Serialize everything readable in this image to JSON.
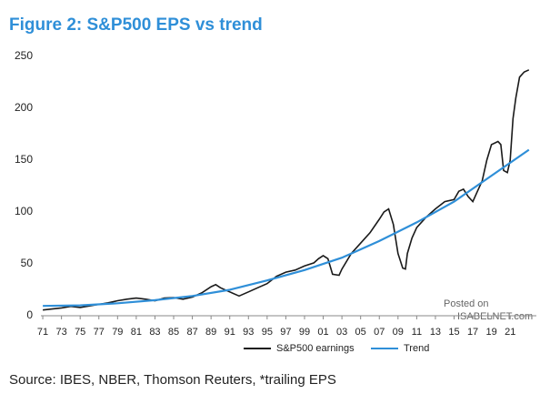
{
  "chart_data": {
    "type": "line",
    "title": "Figure 2: S&P500 EPS vs trend",
    "source": "Source: IBES, NBER, Thomson Reuters, *trailing EPS",
    "watermark": [
      "Posted on",
      "ISABELNET.com"
    ],
    "xlim": [
      1970.8,
      2023.8
    ],
    "ylim": [
      0,
      250
    ],
    "yticks": [
      0,
      50,
      100,
      150,
      200,
      250
    ],
    "xticks": [
      {
        "value": 1971,
        "label": "71"
      },
      {
        "value": 1973,
        "label": "73"
      },
      {
        "value": 1975,
        "label": "75"
      },
      {
        "value": 1977,
        "label": "77"
      },
      {
        "value": 1979,
        "label": "79"
      },
      {
        "value": 1981,
        "label": "81"
      },
      {
        "value": 1983,
        "label": "83"
      },
      {
        "value": 1985,
        "label": "85"
      },
      {
        "value": 1987,
        "label": "87"
      },
      {
        "value": 1989,
        "label": "89"
      },
      {
        "value": 1991,
        "label": "91"
      },
      {
        "value": 1993,
        "label": "93"
      },
      {
        "value": 1995,
        "label": "95"
      },
      {
        "value": 1997,
        "label": "97"
      },
      {
        "value": 1999,
        "label": "99"
      },
      {
        "value": 2001,
        "label": "01"
      },
      {
        "value": 2003,
        "label": "03"
      },
      {
        "value": 2005,
        "label": "05"
      },
      {
        "value": 2007,
        "label": "07"
      },
      {
        "value": 2009,
        "label": "09"
      },
      {
        "value": 2011,
        "label": "11"
      },
      {
        "value": 2013,
        "label": "13"
      },
      {
        "value": 2015,
        "label": "15"
      },
      {
        "value": 2017,
        "label": "17"
      },
      {
        "value": 2019,
        "label": "19"
      },
      {
        "value": 2021,
        "label": "21"
      }
    ],
    "grid": false,
    "legend": "bottom",
    "series": [
      {
        "name": "S&P500 earnings",
        "color": "#1a1a1a",
        "x": [
          1971,
          1972,
          1973,
          1974,
          1975,
          1976,
          1977,
          1978,
          1979,
          1980,
          1981,
          1982,
          1983,
          1984,
          1985,
          1986,
          1987,
          1988,
          1989,
          1989.5,
          1990,
          1991,
          1992,
          1993,
          1994,
          1995,
          1996,
          1997,
          1998,
          1999,
          2000,
          2000.5,
          2001,
          2001.5,
          2002,
          2002.7,
          2003,
          2004,
          2005,
          2006,
          2007,
          2007.5,
          2008,
          2008.5,
          2009,
          2009.5,
          2009.8,
          2010,
          2010.5,
          2011,
          2012,
          2013,
          2014,
          2015,
          2015.5,
          2016,
          2016.5,
          2017,
          2017.5,
          2018,
          2018.5,
          2019,
          2019.7,
          2020,
          2020.3,
          2020.7,
          2021,
          2021.3,
          2021.6,
          2022,
          2022.5,
          2023
        ],
        "values": [
          5.5,
          6.5,
          7.5,
          9,
          8,
          9.5,
          11,
          12.5,
          14.5,
          16,
          17,
          16,
          14.5,
          17,
          17.5,
          16,
          18,
          22,
          28,
          30,
          27,
          23,
          19,
          23,
          27,
          31,
          38,
          42,
          44,
          48,
          51,
          55,
          58,
          55,
          40,
          39,
          45,
          60,
          70,
          80,
          93,
          100,
          103,
          88,
          60,
          46,
          45,
          60,
          75,
          85,
          95,
          103,
          110,
          112,
          120,
          122,
          115,
          110,
          120,
          130,
          150,
          165,
          168,
          165,
          140,
          138,
          150,
          190,
          210,
          230,
          235,
          237
        ]
      },
      {
        "name": "Trend",
        "color": "#2f8fd8",
        "x": [
          1971,
          1975,
          1979,
          1983,
          1987,
          1991,
          1995,
          1999,
          2003,
          2007,
          2011,
          2015,
          2019,
          2023
        ],
        "values": [
          9.5,
          10,
          12,
          15,
          19,
          25,
          34,
          44,
          56,
          72,
          90,
          110,
          135,
          160
        ]
      }
    ]
  }
}
